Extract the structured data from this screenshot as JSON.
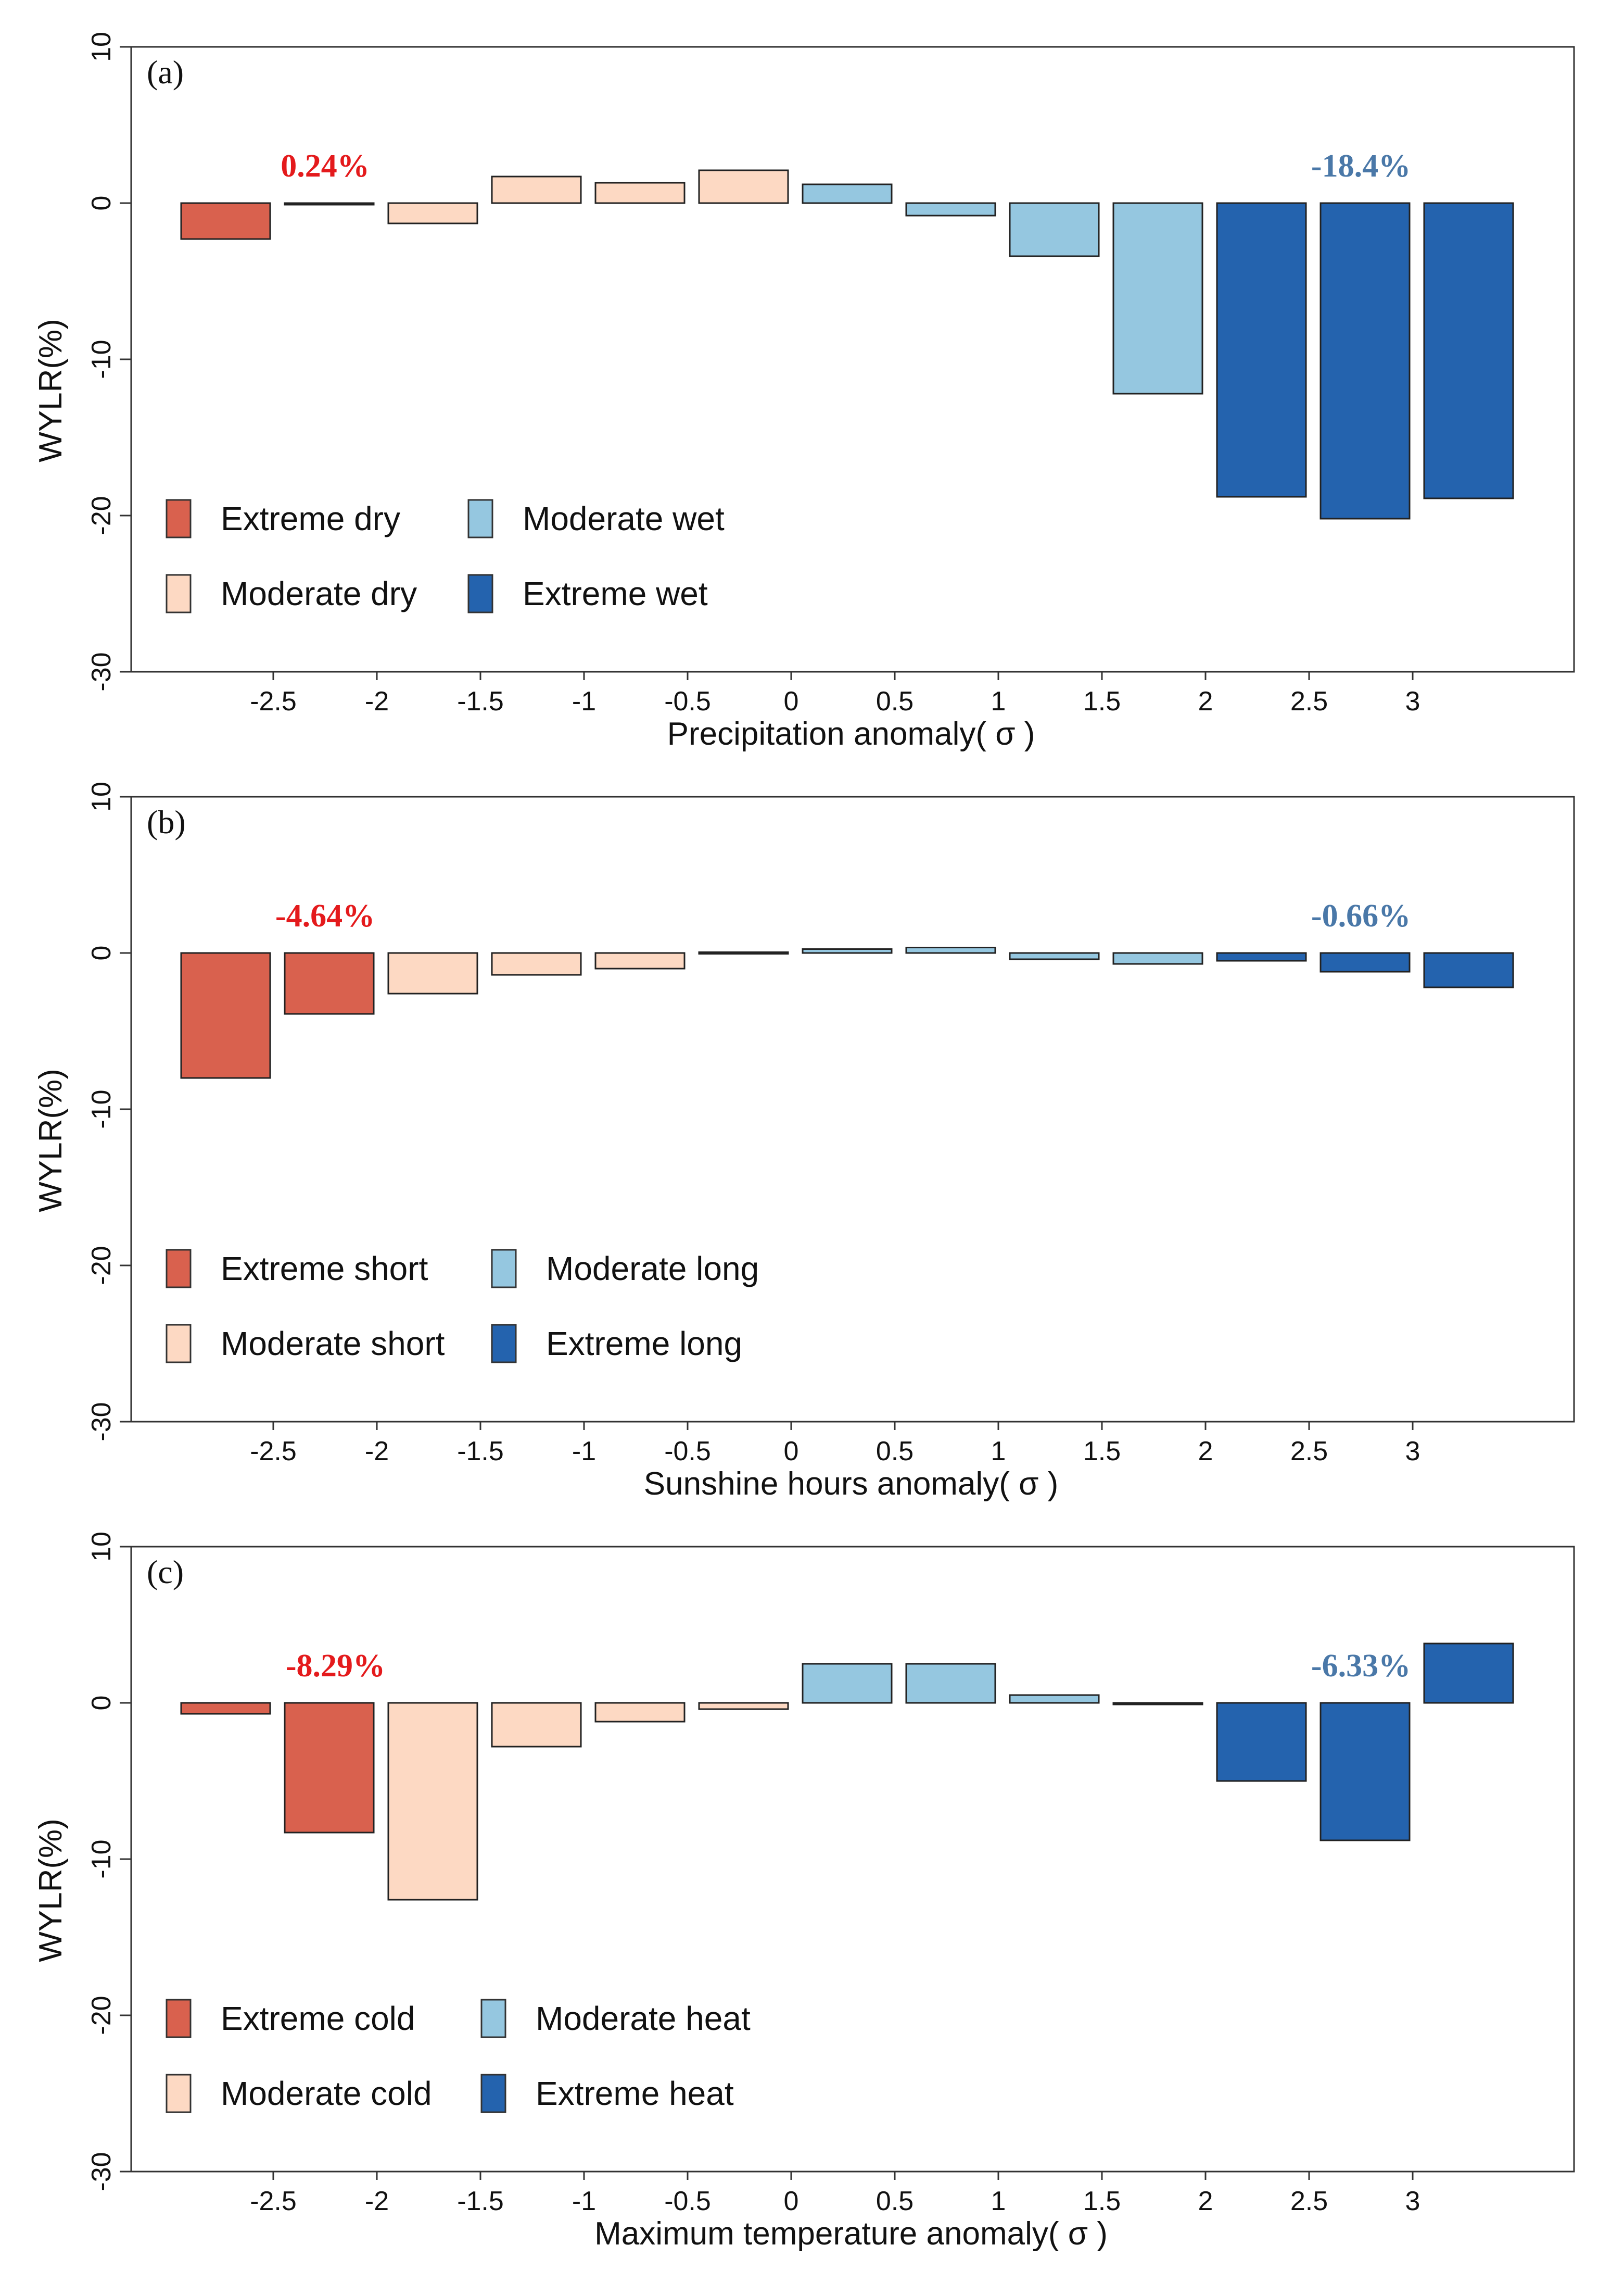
{
  "colors": {
    "extreme_low": "#d9614e",
    "moderate_low": "#fdd9c3",
    "moderate_high": "#95c7e0",
    "extreme_high": "#2463ae",
    "label_red": "#e41a1c",
    "label_blue": "#4a78a8"
  },
  "chart_data": [
    {
      "type": "bar",
      "panel_label": "(a)",
      "xlabel": "Precipitation anomaly( σ )",
      "ylabel": "WYLR(%)",
      "ylim": [
        -30,
        10
      ],
      "yticks": [
        "10",
        "0",
        "-10",
        "-20",
        "-30"
      ],
      "xticks": [
        "-2.5",
        "-2",
        "-1.5",
        "-1",
        "-0.5",
        "0",
        "0.5",
        "1",
        "1.5",
        "2",
        "2.5",
        "3"
      ],
      "bin_edges": [
        -3,
        -2.5,
        -2,
        -1.5,
        -1,
        -0.5,
        0,
        0.5,
        1,
        1.5,
        2,
        2.5,
        3,
        3.5
      ],
      "values": [
        -2.3,
        -0.1,
        -1.3,
        1.7,
        1.3,
        2.1,
        1.2,
        -0.8,
        -3.4,
        -12.2,
        -18.8,
        -20.2,
        -18.9
      ],
      "classes": [
        "extreme_low",
        "extreme_low",
        "moderate_low",
        "moderate_low",
        "moderate_low",
        "moderate_low",
        "moderate_high",
        "moderate_high",
        "moderate_high",
        "moderate_high",
        "extreme_high",
        "extreme_high",
        "extreme_high"
      ],
      "annotations": [
        {
          "text": "0.24%",
          "x": -2.25,
          "y": 1.7,
          "color": "label_red"
        },
        {
          "text": "-18.4%",
          "x": 2.75,
          "y": 1.7,
          "color": "label_blue"
        }
      ],
      "legend": [
        {
          "label": "Extreme dry",
          "class": "extreme_low"
        },
        {
          "label": "Moderate dry",
          "class": "moderate_low"
        },
        {
          "label": "Moderate wet",
          "class": "moderate_high"
        },
        {
          "label": "Extreme wet",
          "class": "extreme_high"
        }
      ]
    },
    {
      "type": "bar",
      "panel_label": "(b)",
      "xlabel": "Sunshine hours anomaly( σ )",
      "ylabel": "WYLR(%)",
      "ylim": [
        -30,
        10
      ],
      "yticks": [
        "10",
        "0",
        "-10",
        "-20",
        "-30"
      ],
      "xticks": [
        "-2.5",
        "-2",
        "-1.5",
        "-1",
        "-0.5",
        "0",
        "0.5",
        "1",
        "1.5",
        "2",
        "2.5",
        "3"
      ],
      "bin_edges": [
        -3,
        -2.5,
        -2,
        -1.5,
        -1,
        -0.5,
        0,
        0.5,
        1,
        1.5,
        2,
        2.5,
        3,
        3.5
      ],
      "values": [
        -8.0,
        -3.9,
        -2.6,
        -1.4,
        -1.0,
        0.05,
        0.25,
        0.35,
        -0.4,
        -0.7,
        -0.5,
        -1.2,
        -2.2
      ],
      "classes": [
        "extreme_low",
        "extreme_low",
        "moderate_low",
        "moderate_low",
        "moderate_low",
        "moderate_low",
        "moderate_high",
        "moderate_high",
        "moderate_high",
        "moderate_high",
        "extreme_high",
        "extreme_high",
        "extreme_high"
      ],
      "annotations": [
        {
          "text": "-4.64%",
          "x": -2.25,
          "y": 1.7,
          "color": "label_red"
        },
        {
          "text": "-0.66%",
          "x": 2.75,
          "y": 1.7,
          "color": "label_blue"
        }
      ],
      "legend": [
        {
          "label": "Extreme short",
          "class": "extreme_low"
        },
        {
          "label": "Moderate short",
          "class": "moderate_low"
        },
        {
          "label": "Moderate long",
          "class": "moderate_high"
        },
        {
          "label": "Extreme long",
          "class": "extreme_high"
        }
      ]
    },
    {
      "type": "bar",
      "panel_label": "(c)",
      "xlabel": "Maximum temperature anomaly( σ )",
      "ylabel": "WYLR(%)",
      "ylim": [
        -30,
        10
      ],
      "yticks": [
        "10",
        "0",
        "-10",
        "-20",
        "-30"
      ],
      "xticks": [
        "-2.5",
        "-2",
        "-1.5",
        "-1",
        "-0.5",
        "0",
        "0.5",
        "1",
        "1.5",
        "2",
        "2.5",
        "3"
      ],
      "bin_edges": [
        -3,
        -2.5,
        -2,
        -1.5,
        -1,
        -0.5,
        0,
        0.5,
        1,
        1.5,
        2,
        2.5,
        3,
        3.5
      ],
      "values": [
        -0.7,
        -8.3,
        -12.6,
        -2.8,
        -1.2,
        -0.4,
        2.5,
        2.5,
        0.5,
        -0.05,
        -5.0,
        -8.8,
        3.8
      ],
      "classes": [
        "extreme_low",
        "extreme_low",
        "moderate_low",
        "moderate_low",
        "moderate_low",
        "moderate_low",
        "moderate_high",
        "moderate_high",
        "moderate_high",
        "moderate_high",
        "extreme_high",
        "extreme_high",
        "extreme_high"
      ],
      "annotations": [
        {
          "text": "-8.29%",
          "x": -2.2,
          "y": 1.7,
          "color": "label_red"
        },
        {
          "text": "-6.33%",
          "x": 2.75,
          "y": 1.7,
          "color": "label_blue"
        }
      ],
      "legend": [
        {
          "label": "Extreme cold",
          "class": "extreme_low"
        },
        {
          "label": "Moderate cold",
          "class": "moderate_low"
        },
        {
          "label": "Moderate heat",
          "class": "moderate_high"
        },
        {
          "label": "Extreme heat",
          "class": "extreme_high"
        }
      ]
    }
  ]
}
